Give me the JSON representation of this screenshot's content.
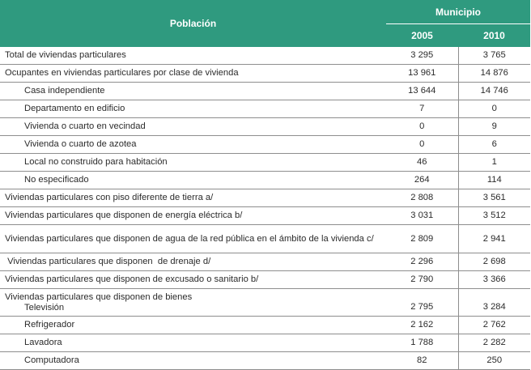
{
  "header": {
    "poblacion": "Población",
    "municipio": "Municipio",
    "year_2005": "2005",
    "year_2010": "2010"
  },
  "rows": [
    {
      "label": "Total de viviendas particulares",
      "v2005": "3 295",
      "v2010": "3 765"
    },
    {
      "label": "Ocupantes en viviendas particulares por clase de vivienda",
      "v2005": "13 961",
      "v2010": "14 876"
    },
    {
      "label": "Casa independiente",
      "v2005": "13 644",
      "v2010": "14 746"
    },
    {
      "label": "Departamento en edificio",
      "v2005": "7",
      "v2010": "0"
    },
    {
      "label": "Vivienda o cuarto en vecindad",
      "v2005": "0",
      "v2010": "9"
    },
    {
      "label": "Vivienda o cuarto de azotea",
      "v2005": "0",
      "v2010": "6"
    },
    {
      "label": "Local no construido para habitación",
      "v2005": "46",
      "v2010": "1"
    },
    {
      "label": "No especificado",
      "v2005": "264",
      "v2010": "114"
    },
    {
      "label": "Viviendas particulares con piso diferente de tierra a/",
      "v2005": "2 808",
      "v2010": "3 561"
    },
    {
      "label": "Viviendas particulares que disponen de energía eléctrica b/",
      "v2005": "3 031",
      "v2010": "3 512"
    },
    {
      "label": "Viviendas particulares que disponen de agua  de la red pública en el ámbito de la vivienda c/",
      "v2005": "2 809",
      "v2010": "2 941"
    },
    {
      "label": " Viviendas particulares que disponen  de drenaje d/",
      "v2005": "2 296",
      "v2010": "2 698"
    },
    {
      "label": "Viviendas particulares que disponen de excusado o sanitario b/",
      "v2005": "2 790",
      "v2010": "3 366"
    },
    {
      "label": "Viviendas particulares que disponen de bienes",
      "sublabel": "Televisión",
      "v2005": "2 795",
      "v2010": "3 284"
    },
    {
      "label": "Refrigerador",
      "v2005": "2 162",
      "v2010": "2 762"
    },
    {
      "label": "Lavadora",
      "v2005": "1 788",
      "v2010": "2 282"
    },
    {
      "label": "Computadora",
      "v2005": "82",
      "v2010": "250"
    }
  ]
}
